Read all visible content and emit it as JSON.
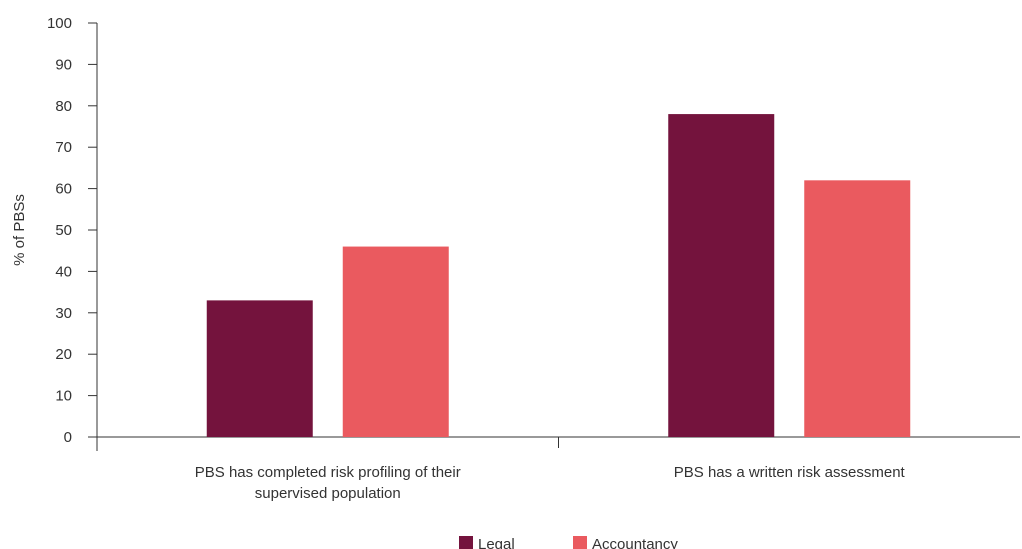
{
  "chart_data": {
    "type": "bar",
    "categories": [
      [
        "PBS has completed risk profiling of their",
        "supervised population"
      ],
      [
        "PBS has a written risk assessment"
      ]
    ],
    "series": [
      {
        "name": "Legal",
        "color": "#74133d",
        "values": [
          33,
          78
        ]
      },
      {
        "name": "Accountancy",
        "color": "#ea5a5f",
        "values": [
          46,
          62
        ]
      }
    ],
    "ylabel": "% of PBSs",
    "xlabel": "",
    "ylim": [
      0,
      100
    ],
    "yticks": [
      0,
      10,
      20,
      30,
      40,
      50,
      60,
      70,
      80,
      90,
      100
    ],
    "grid": false,
    "legend_position": "bottom"
  }
}
